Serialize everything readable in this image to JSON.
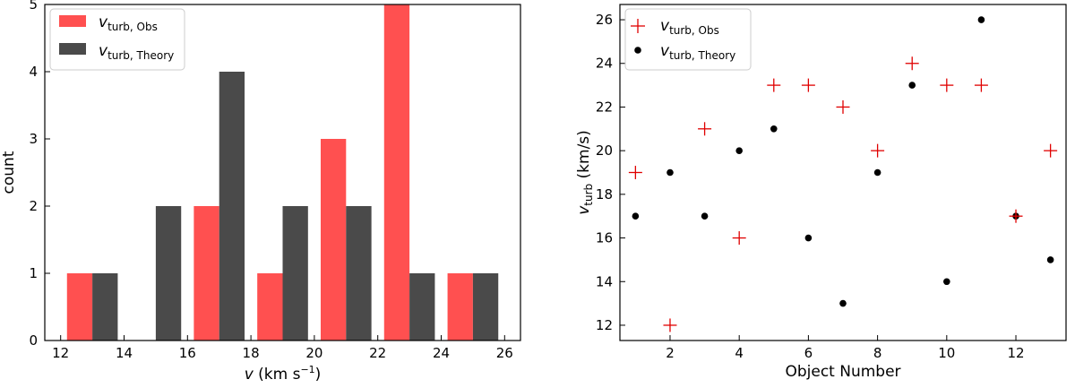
{
  "colors": {
    "obs": "#ff5050",
    "theory": "#4a4a4a",
    "obs_marker": "#e00000",
    "theory_marker": "#000000"
  },
  "chart_data": [
    {
      "type": "bar",
      "title": "",
      "xlabel_main": "v",
      "xlabel_unit": " (km s",
      "xlabel_exp": "−1",
      "xlabel_close": ")",
      "ylabel": "count",
      "xlim": [
        11.5,
        26.5
      ],
      "ylim": [
        0,
        5
      ],
      "xticks": [
        12,
        14,
        16,
        18,
        20,
        22,
        24,
        26
      ],
      "yticks": [
        0,
        1,
        2,
        3,
        4,
        5
      ],
      "bin_width": 0.8,
      "legend": [
        {
          "base": "v",
          "sub": "turb, Obs"
        },
        {
          "base": "v",
          "sub": "turb, Theory"
        }
      ],
      "series": [
        {
          "name": "v_turb,Obs",
          "bins": [
            {
              "x0": 12.2,
              "count": 1
            },
            {
              "x0": 16.2,
              "count": 2
            },
            {
              "x0": 18.2,
              "count": 1
            },
            {
              "x0": 20.2,
              "count": 3
            },
            {
              "x0": 22.2,
              "count": 5
            },
            {
              "x0": 24.2,
              "count": 1
            }
          ]
        },
        {
          "name": "v_turb,Theory",
          "bins": [
            {
              "x0": 13.0,
              "count": 1
            },
            {
              "x0": 15.0,
              "count": 2
            },
            {
              "x0": 17.0,
              "count": 4
            },
            {
              "x0": 19.0,
              "count": 2
            },
            {
              "x0": 21.0,
              "count": 2
            },
            {
              "x0": 23.0,
              "count": 1
            },
            {
              "x0": 25.0,
              "count": 1
            }
          ]
        }
      ]
    },
    {
      "type": "scatter",
      "title": "",
      "xlabel": "Object Number",
      "ylabel_main": "v",
      "ylabel_sub": "turb",
      "ylabel_unit": " (km/s)",
      "xlim": [
        0.55,
        13.45
      ],
      "ylim": [
        11.3,
        26.7
      ],
      "xticks": [
        2,
        4,
        6,
        8,
        10,
        12
      ],
      "yticks": [
        12,
        14,
        16,
        18,
        20,
        22,
        24,
        26
      ],
      "legend": [
        {
          "base": "v",
          "sub": "turb, Obs"
        },
        {
          "base": "v",
          "sub": "turb, Theory"
        }
      ],
      "series": [
        {
          "name": "v_turb,Obs",
          "marker": "+",
          "x": [
            1,
            2,
            3,
            4,
            5,
            6,
            7,
            8,
            9,
            10,
            11,
            12,
            13
          ],
          "y": [
            19,
            12,
            21,
            16,
            23,
            23,
            22,
            20,
            24,
            23,
            23,
            17,
            20
          ]
        },
        {
          "name": "v_turb,Theory",
          "marker": "o",
          "x": [
            1,
            2,
            3,
            4,
            5,
            6,
            7,
            8,
            9,
            10,
            11,
            12,
            13
          ],
          "y": [
            17,
            19,
            17,
            20,
            21,
            16,
            13,
            19,
            23,
            14,
            26,
            17,
            15
          ]
        }
      ]
    }
  ]
}
